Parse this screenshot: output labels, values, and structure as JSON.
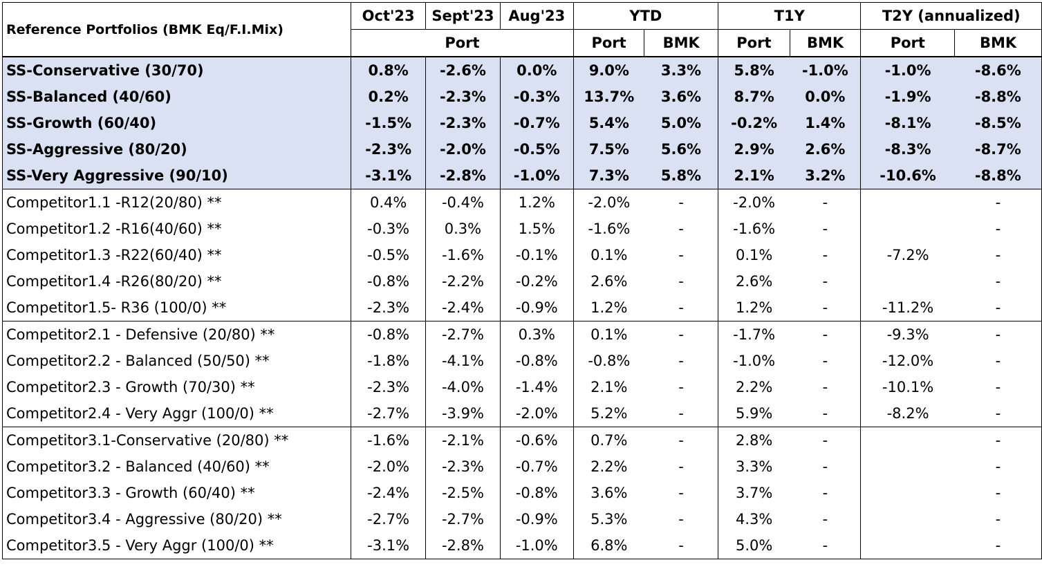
{
  "header": {
    "title": "Reference Portfolios (BMK Eq/F.I.Mix)",
    "periods": [
      "Oct'23",
      "Sept'23",
      "Aug'23"
    ],
    "ytd": "YTD",
    "t1y": "T1Y",
    "t2y": "T2Y (annualized)",
    "port": "Port",
    "bmk": "BMK"
  },
  "groups": [
    {
      "style": "ss",
      "rows": [
        {
          "name": "SS-Conservative (30/70)",
          "values": [
            "0.8%",
            "-2.6%",
            "0.0%",
            "9.0%",
            "3.3%",
            "5.8%",
            "-1.0%",
            "-1.0%",
            "-8.6%"
          ]
        },
        {
          "name": "SS-Balanced (40/60)",
          "values": [
            "0.2%",
            "-2.3%",
            "-0.3%",
            "13.7%",
            "3.6%",
            "8.7%",
            "0.0%",
            "-1.9%",
            "-8.8%"
          ]
        },
        {
          "name": "SS-Growth (60/40)",
          "values": [
            "-1.5%",
            "-2.3%",
            "-0.7%",
            "5.4%",
            "5.0%",
            "-0.2%",
            "1.4%",
            "-8.1%",
            "-8.5%"
          ]
        },
        {
          "name": "SS-Aggressive (80/20)",
          "values": [
            "-2.3%",
            "-2.0%",
            "-0.5%",
            "7.5%",
            "5.6%",
            "2.9%",
            "2.6%",
            "-8.3%",
            "-8.7%"
          ]
        },
        {
          "name": "SS-Very Aggressive (90/10)",
          "values": [
            "-3.1%",
            "-2.8%",
            "-1.0%",
            "7.3%",
            "5.8%",
            "2.1%",
            "3.2%",
            "-10.6%",
            "-8.8%"
          ]
        }
      ]
    },
    {
      "style": "plain",
      "rows": [
        {
          "name": "Competitor1.1 -R12(20/80) **",
          "values": [
            "0.4%",
            "-0.4%",
            "1.2%",
            "-2.0%",
            "-",
            "-2.0%",
            "-",
            "",
            "-"
          ]
        },
        {
          "name": "Competitor1.2 -R16(40/60) **",
          "values": [
            "-0.3%",
            "0.3%",
            "1.5%",
            "-1.6%",
            "-",
            "-1.6%",
            "-",
            "",
            "-"
          ]
        },
        {
          "name": "Competitor1.3 -R22(60/40) **",
          "values": [
            "-0.5%",
            "-1.6%",
            "-0.1%",
            "0.1%",
            "-",
            "0.1%",
            "-",
            "-7.2%",
            "-"
          ]
        },
        {
          "name": "Competitor1.4 -R26(80/20) **",
          "values": [
            "-0.8%",
            "-2.2%",
            "-0.2%",
            "2.6%",
            "-",
            "2.6%",
            "-",
            "",
            "-"
          ]
        },
        {
          "name": "Competitor1.5- R36 (100/0) **",
          "values": [
            "-2.3%",
            "-2.4%",
            "-0.9%",
            "1.2%",
            "-",
            "1.2%",
            "-",
            "-11.2%",
            "-"
          ]
        }
      ]
    },
    {
      "style": "plain",
      "rows": [
        {
          "name": "Competitor2.1  - Defensive  (20/80) **",
          "values": [
            "-0.8%",
            "-2.7%",
            "0.3%",
            "0.1%",
            "-",
            "-1.7%",
            "-",
            "-9.3%",
            "-"
          ]
        },
        {
          "name": "Competitor2.2  - Balanced (50/50) **",
          "values": [
            "-1.8%",
            "-4.1%",
            "-0.8%",
            "-0.8%",
            "-",
            "-1.0%",
            "-",
            "-12.0%",
            "-"
          ]
        },
        {
          "name": "Competitor2.3  - Growth  (70/30) **",
          "values": [
            "-2.3%",
            "-4.0%",
            "-1.4%",
            "2.1%",
            "-",
            "2.2%",
            "-",
            "-10.1%",
            "-"
          ]
        },
        {
          "name": "Competitor2.4  - Very Aggr  (100/0) **",
          "values": [
            "-2.7%",
            "-3.9%",
            "-2.0%",
            "5.2%",
            "-",
            "5.9%",
            "-",
            "-8.2%",
            "-"
          ]
        }
      ]
    },
    {
      "style": "plain",
      "rows": [
        {
          "name": "Competitor3.1-Conservative (20/80) **",
          "values": [
            "-1.6%",
            "-2.1%",
            "-0.6%",
            "0.7%",
            "-",
            "2.8%",
            "-",
            "",
            "-"
          ]
        },
        {
          "name": "Competitor3.2 - Balanced  (40/60) **",
          "values": [
            "-2.0%",
            "-2.3%",
            "-0.7%",
            "2.2%",
            "-",
            "3.3%",
            "-",
            "",
            "-"
          ]
        },
        {
          "name": "Competitor3.3 - Growth  (60/40) **",
          "values": [
            "-2.4%",
            "-2.5%",
            "-0.8%",
            "3.6%",
            "-",
            "3.7%",
            "-",
            "",
            "-"
          ]
        },
        {
          "name": "Competitor3.4 - Aggressive  (80/20) **",
          "values": [
            "-2.7%",
            "-2.7%",
            "-0.9%",
            "5.3%",
            "-",
            "4.3%",
            "-",
            "",
            "-"
          ]
        },
        {
          "name": "Competitor3.5  - Very Aggr (100/0) **",
          "values": [
            "-3.1%",
            "-2.8%",
            "-1.0%",
            "6.8%",
            "-",
            "5.0%",
            "-",
            "",
            "-"
          ]
        }
      ]
    }
  ],
  "colors": {
    "ss_highlight": "#d9e1f2",
    "border": "#000000"
  }
}
